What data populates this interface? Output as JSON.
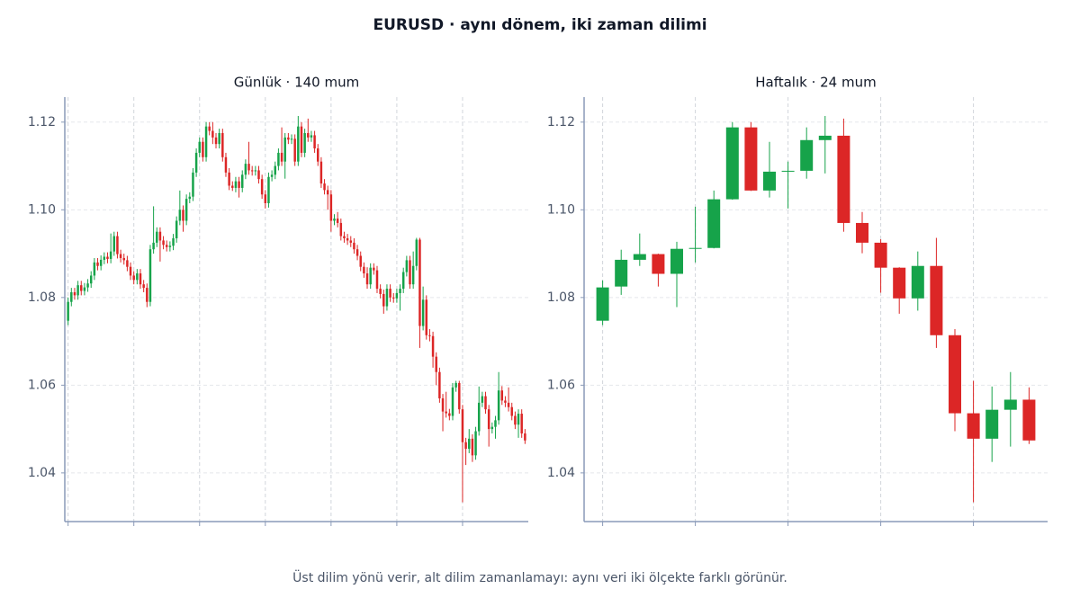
{
  "title": "EURUSD · aynı dönem, iki zaman dilimi",
  "caption": "Üst dilim yönü verir, alt dilim zamanlamayı: aynı veri iki ölçekte farklı görünür.",
  "chart_data": [
    {
      "type": "candlestick",
      "title": "Günlük · 140 mum",
      "up_color": "#16a34a",
      "down_color": "#dc2626",
      "grid": true,
      "xlim": [
        -1,
        140
      ],
      "xticks": [
        0,
        20,
        40,
        60,
        80,
        100,
        120
      ],
      "ylim": [
        1.0289,
        1.1257
      ],
      "yticks": [
        1.04,
        1.06,
        1.08,
        {
          "value": 1.1,
          "label": "1.10"
        },
        1.12
      ],
      "open": [
        1.0747,
        1.079,
        1.0812,
        1.0805,
        1.0828,
        1.0815,
        1.0823,
        1.0832,
        1.085,
        1.088,
        1.0872,
        1.0886,
        1.0893,
        1.0888,
        1.0905,
        1.094,
        1.0899,
        1.089,
        1.0885,
        1.087,
        1.085,
        1.084,
        1.0855,
        1.083,
        1.0822,
        1.079,
        1.091,
        1.0925,
        1.095,
        1.093,
        1.092,
        1.0915,
        1.0918,
        1.0935,
        1.0975,
        1.1,
        1.0975,
        1.1025,
        1.103,
        1.1085,
        1.113,
        1.1155,
        1.112,
        1.119,
        1.118,
        1.1165,
        1.115,
        1.1175,
        1.112,
        1.1085,
        1.1055,
        1.105,
        1.1065,
        1.105,
        1.108,
        1.1105,
        1.109,
        1.1088,
        1.109,
        1.107,
        1.1035,
        1.1015,
        1.1075,
        1.108,
        1.11,
        1.113,
        1.111,
        1.1165,
        1.116,
        1.1162,
        1.111,
        1.119,
        1.113,
        1.1175,
        1.1165,
        1.117,
        1.114,
        1.111,
        1.106,
        1.1045,
        1.1035,
        1.0975,
        1.098,
        1.097,
        1.094,
        1.0935,
        1.093,
        1.0925,
        1.091,
        1.0895,
        1.087,
        1.0855,
        1.083,
        1.0868,
        1.0862,
        1.082,
        1.0808,
        1.078,
        1.082,
        1.08,
        1.0798,
        1.081,
        1.082,
        1.0858,
        1.0885,
        1.083,
        1.0872,
        1.0932,
        1.0735,
        1.0795,
        1.0714,
        1.0712,
        1.0665,
        1.063,
        1.057,
        1.054,
        1.0536,
        1.053,
        1.0595,
        1.0605,
        1.0545,
        1.047,
        1.0455,
        1.0478,
        1.044,
        1.0495,
        1.056,
        1.0575,
        1.0545,
        1.05,
        1.0505,
        1.052,
        1.0588,
        1.0565,
        1.056,
        1.055,
        1.053,
        1.051,
        1.0535,
        1.049
      ],
      "high": [
        1.08,
        1.0822,
        1.0822,
        1.0838,
        1.0838,
        1.0833,
        1.0842,
        1.086,
        1.089,
        1.089,
        1.0896,
        1.0903,
        1.0903,
        1.0946,
        1.095,
        1.095,
        1.0909,
        1.09,
        1.0895,
        1.088,
        1.086,
        1.0865,
        1.0865,
        1.084,
        1.0832,
        1.092,
        1.1008,
        1.096,
        1.096,
        1.094,
        1.093,
        1.0928,
        1.0945,
        1.0985,
        1.1044,
        1.101,
        1.1035,
        1.104,
        1.1095,
        1.114,
        1.1165,
        1.1165,
        1.12,
        1.12,
        1.12,
        1.1175,
        1.1185,
        1.1185,
        1.113,
        1.1095,
        1.1065,
        1.1075,
        1.1075,
        1.109,
        1.1115,
        1.1155,
        1.11,
        1.11,
        1.11,
        1.108,
        1.1045,
        1.1085,
        1.109,
        1.111,
        1.114,
        1.1188,
        1.1175,
        1.1175,
        1.1172,
        1.1172,
        1.1214,
        1.12,
        1.1185,
        1.1208,
        1.118,
        1.118,
        1.115,
        1.112,
        1.107,
        1.1055,
        1.1045,
        1.099,
        1.0995,
        1.098,
        1.095,
        1.0945,
        1.094,
        1.0935,
        1.092,
        1.0905,
        1.088,
        1.0869,
        1.0878,
        1.0878,
        1.0872,
        1.083,
        1.0818,
        1.083,
        1.083,
        1.081,
        1.082,
        1.083,
        1.0868,
        1.0895,
        1.0895,
        1.0905,
        1.0936,
        1.0936,
        1.0825,
        1.0805,
        1.0728,
        1.0722,
        1.0675,
        1.064,
        1.058,
        1.0585,
        1.0546,
        1.0605,
        1.061,
        1.061,
        1.0555,
        1.048,
        1.05,
        1.0488,
        1.0505,
        1.0597,
        1.0585,
        1.0585,
        1.0555,
        1.0515,
        1.053,
        1.063,
        1.0598,
        1.0575,
        1.0595,
        1.056,
        1.054,
        1.0545,
        1.0545,
        1.05
      ],
      "low": [
        1.0737,
        1.078,
        1.0795,
        1.0795,
        1.0805,
        1.0805,
        1.0813,
        1.0822,
        1.084,
        1.0862,
        1.0862,
        1.0876,
        1.0878,
        1.0878,
        1.0895,
        1.0889,
        1.088,
        1.0875,
        1.086,
        1.084,
        1.083,
        1.083,
        1.082,
        1.0812,
        1.0778,
        1.078,
        1.09,
        1.0915,
        1.0882,
        1.091,
        1.0905,
        1.0905,
        1.0908,
        1.0925,
        1.0965,
        1.095,
        1.0965,
        1.1015,
        1.102,
        1.1075,
        1.112,
        1.111,
        1.111,
        1.117,
        1.115,
        1.114,
        1.114,
        1.111,
        1.1075,
        1.1045,
        1.1043,
        1.104,
        1.1028,
        1.104,
        1.107,
        1.108,
        1.1078,
        1.1078,
        1.106,
        1.1025,
        1.1003,
        1.1005,
        1.1065,
        1.107,
        1.109,
        1.11,
        1.1071,
        1.115,
        1.115,
        1.11,
        1.11,
        1.112,
        1.112,
        1.1155,
        1.1155,
        1.113,
        1.11,
        1.105,
        1.1035,
        1.1,
        1.095,
        1.0965,
        1.096,
        1.093,
        1.0925,
        1.092,
        1.0915,
        1.09,
        1.0885,
        1.086,
        1.0845,
        1.082,
        1.082,
        1.0852,
        1.081,
        1.0798,
        1.0763,
        1.077,
        1.079,
        1.0788,
        1.0788,
        1.077,
        1.081,
        1.0848,
        1.082,
        1.082,
        1.0862,
        1.0685,
        1.0725,
        1.0704,
        1.07,
        1.064,
        1.06,
        1.056,
        1.0495,
        1.0526,
        1.052,
        1.052,
        1.0585,
        1.0535,
        1.0333,
        1.0418,
        1.0445,
        1.0425,
        1.043,
        1.0485,
        1.055,
        1.0535,
        1.046,
        1.049,
        1.0478,
        1.051,
        1.0555,
        1.055,
        1.054,
        1.052,
        1.05,
        1.048,
        1.048,
        1.0466
      ],
      "close": [
        1.079,
        1.0812,
        1.0805,
        1.0828,
        1.0815,
        1.0823,
        1.0832,
        1.085,
        1.088,
        1.0872,
        1.0886,
        1.0893,
        1.0888,
        1.0905,
        1.094,
        1.0899,
        1.089,
        1.0885,
        1.087,
        1.085,
        1.084,
        1.0855,
        1.083,
        1.0822,
        1.079,
        1.091,
        1.0925,
        1.095,
        1.093,
        1.092,
        1.0915,
        1.0918,
        1.0935,
        1.0975,
        1.1,
        1.0975,
        1.1025,
        1.103,
        1.1085,
        1.113,
        1.1155,
        1.112,
        1.119,
        1.118,
        1.1165,
        1.115,
        1.1175,
        1.112,
        1.1085,
        1.1055,
        1.105,
        1.1065,
        1.105,
        1.108,
        1.1105,
        1.109,
        1.1088,
        1.109,
        1.107,
        1.1035,
        1.1015,
        1.1075,
        1.108,
        1.11,
        1.113,
        1.111,
        1.1165,
        1.116,
        1.1162,
        1.111,
        1.119,
        1.113,
        1.1175,
        1.1165,
        1.117,
        1.114,
        1.111,
        1.106,
        1.1045,
        1.1035,
        1.0975,
        1.098,
        1.097,
        1.094,
        1.0935,
        1.093,
        1.0925,
        1.091,
        1.0895,
        1.087,
        1.0855,
        1.083,
        1.0868,
        1.0862,
        1.082,
        1.0808,
        1.078,
        1.082,
        1.08,
        1.0798,
        1.081,
        1.082,
        1.0858,
        1.0885,
        1.083,
        1.0872,
        1.0932,
        1.0735,
        1.0795,
        1.0714,
        1.0712,
        1.0665,
        1.063,
        1.057,
        1.054,
        1.0536,
        1.053,
        1.0595,
        1.0605,
        1.0545,
        1.047,
        1.0455,
        1.0478,
        1.044,
        1.0495,
        1.056,
        1.0575,
        1.0545,
        1.05,
        1.0505,
        1.052,
        1.0588,
        1.0565,
        1.056,
        1.055,
        1.053,
        1.051,
        1.0535,
        1.049,
        1.0474
      ]
    },
    {
      "type": "candlestick",
      "title": "Haftalık · 24 mum",
      "up_color": "#16a34a",
      "down_color": "#dc2626",
      "grid": true,
      "xlim": [
        -1,
        24
      ],
      "xticks": [
        0,
        5,
        10,
        15,
        20
      ],
      "ylim": [
        1.0289,
        1.1257
      ],
      "yticks": [
        1.04,
        1.06,
        1.08,
        {
          "value": 1.1,
          "label": "1.10"
        },
        1.12
      ],
      "open": [
        1.0747,
        1.0825,
        1.0886,
        1.0899,
        1.0854,
        1.0911,
        1.0913,
        1.1024,
        1.1188,
        1.1044,
        1.1087,
        1.1089,
        1.1159,
        1.1169,
        1.097,
        1.0925,
        1.0868,
        1.0798,
        1.0872,
        1.0714,
        1.0536,
        1.0478,
        1.0544,
        1.0567
      ],
      "high": [
        1.0839,
        1.0909,
        1.0946,
        1.09,
        1.0927,
        1.1007,
        1.1044,
        1.12,
        1.12,
        1.1155,
        1.111,
        1.1188,
        1.1214,
        1.1208,
        1.0995,
        1.0933,
        1.0869,
        1.0905,
        1.0936,
        1.0728,
        1.061,
        1.0597,
        1.063,
        1.0595
      ],
      "low": [
        1.0737,
        1.0806,
        1.0872,
        1.0825,
        1.0778,
        1.088,
        1.0912,
        1.1023,
        1.1043,
        1.1028,
        1.1003,
        1.1071,
        1.1083,
        1.095,
        1.0901,
        1.0811,
        1.0763,
        1.077,
        1.0685,
        1.0495,
        1.0333,
        1.0425,
        1.046,
        1.0466
      ],
      "close": [
        1.0823,
        1.0886,
        1.0899,
        1.0854,
        1.0911,
        1.0913,
        1.1024,
        1.1188,
        1.1044,
        1.1087,
        1.1089,
        1.1159,
        1.1169,
        1.097,
        1.0925,
        1.0868,
        1.0798,
        1.0872,
        1.0714,
        1.0536,
        1.0478,
        1.0544,
        1.0567,
        1.0474
      ]
    }
  ]
}
